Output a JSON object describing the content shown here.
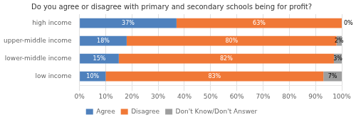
{
  "chart_data": {
    "type": "bar",
    "title": "Do you agree or disagree with primary and secondary schools being for profit?",
    "orientation": "horizontal",
    "stacked": true,
    "categories": [
      "high income",
      "upper-middle income",
      "lower-middle income",
      "low income"
    ],
    "series": [
      {
        "name": "Agree",
        "color": "#4f81bd",
        "values": [
          37,
          18,
          15,
          10
        ],
        "value_labels": [
          "37%",
          "18%",
          "15%",
          "10%"
        ]
      },
      {
        "name": "Disagree",
        "color": "#f07837",
        "values": [
          63,
          80,
          82,
          83
        ],
        "value_labels": [
          "63%",
          "80%",
          "82%",
          "83%"
        ]
      },
      {
        "name": "Don't Know/Don't Answer",
        "color": "#9e9e9e",
        "values": [
          0,
          2,
          3,
          7
        ],
        "value_labels": [
          "0%",
          "2%",
          "3%",
          "7%"
        ]
      }
    ],
    "xlim": [
      0,
      100
    ],
    "xticks": [
      {
        "value": 0,
        "label": "0%"
      },
      {
        "value": 10,
        "label": "10%"
      },
      {
        "value": 20,
        "label": "20%"
      },
      {
        "value": 30,
        "label": "30%"
      },
      {
        "value": 40,
        "label": "40%"
      },
      {
        "value": 50,
        "label": "50%"
      },
      {
        "value": 60,
        "label": "60%"
      },
      {
        "value": 70,
        "label": "70%"
      },
      {
        "value": 80,
        "label": "80%"
      },
      {
        "value": 90,
        "label": "90%"
      },
      {
        "value": 100,
        "label": "100%"
      }
    ],
    "grid": true,
    "legend": "bottom",
    "data_labels": true
  }
}
